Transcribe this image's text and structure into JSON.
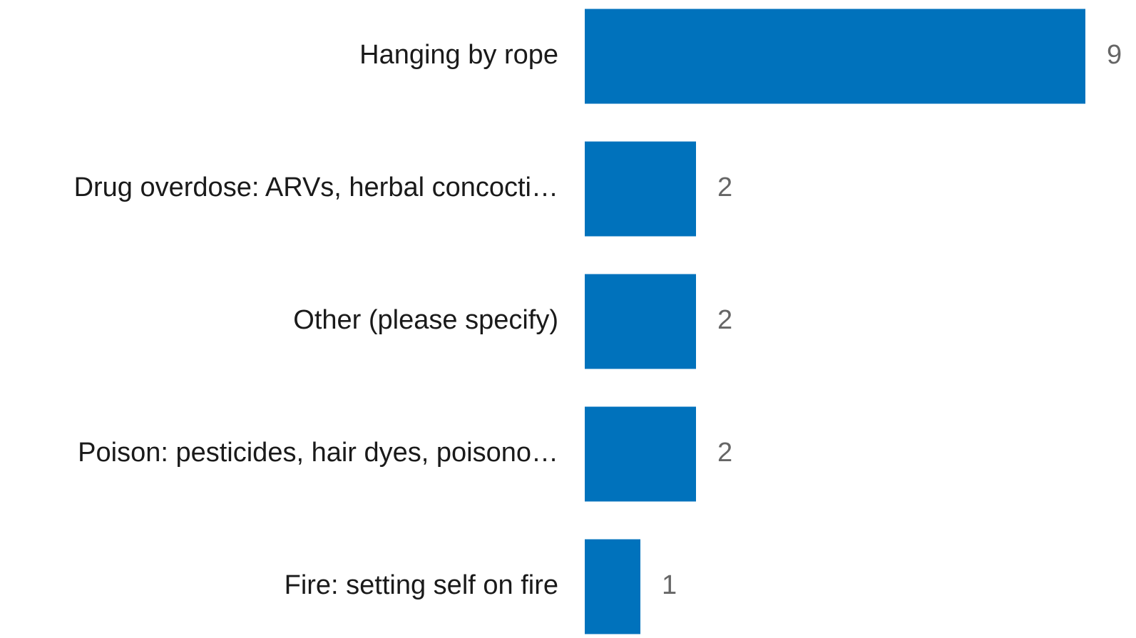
{
  "chart_data": {
    "type": "barh",
    "categories": [
      "Hanging by rope",
      "Drug overdose: ARVs, herbal concocti…",
      "Other (please specify)",
      "Poison: pesticides, hair dyes, poisono…",
      "Fire: setting self on fire"
    ],
    "values": [
      9,
      2,
      2,
      2,
      1
    ],
    "color": "#0072bc"
  }
}
